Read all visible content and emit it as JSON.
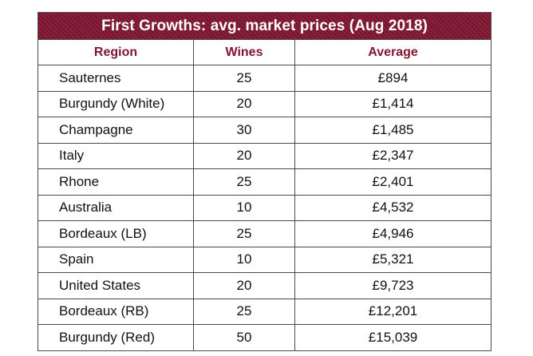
{
  "chart_data": {
    "type": "table",
    "title": "First Growths: avg. market prices (Aug 2018)",
    "columns": [
      "Region",
      "Wines",
      "Average"
    ],
    "rows": [
      {
        "region": "Sauternes",
        "wines": "25",
        "average": "£894"
      },
      {
        "region": "Burgundy (White)",
        "wines": "20",
        "average": "£1,414"
      },
      {
        "region": "Champagne",
        "wines": "30",
        "average": "£1,485"
      },
      {
        "region": "Italy",
        "wines": "20",
        "average": "£2,347"
      },
      {
        "region": "Rhone",
        "wines": "25",
        "average": "£2,401"
      },
      {
        "region": "Australia",
        "wines": "10",
        "average": "£4,532"
      },
      {
        "region": "Bordeaux (LB)",
        "wines": "25",
        "average": "£4,946"
      },
      {
        "region": "Spain",
        "wines": "10",
        "average": "£5,321"
      },
      {
        "region": "United States",
        "wines": "20",
        "average": "£9,723"
      },
      {
        "region": "Bordeaux (RB)",
        "wines": "25",
        "average": "£12,201"
      },
      {
        "region": "Burgundy (Red)",
        "wines": "50",
        "average": "£15,039"
      }
    ]
  },
  "colors": {
    "header_fill": "#7f1530",
    "header_text": "#ffffff",
    "column_header_text": "#7f1530",
    "border": "#4a4a4a"
  }
}
